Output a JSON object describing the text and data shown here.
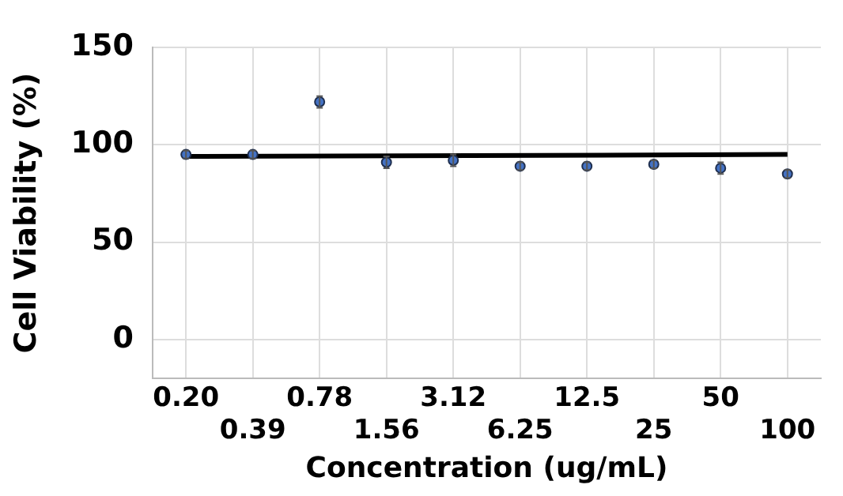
{
  "chart_data": {
    "type": "scatter",
    "xlabel": "Concentration (ug/mL)",
    "ylabel": "Cell Viability (%)",
    "categories": [
      "0.20",
      "0.39",
      "0.78",
      "1.56",
      "3.12",
      "6.25",
      "12.5",
      "25",
      "50",
      "100"
    ],
    "series": [
      {
        "color": "#4472c4",
        "values": [
          95,
          95,
          122,
          91,
          92,
          89,
          89,
          90,
          88,
          85
        ],
        "errors": [
          2,
          2,
          3,
          3,
          3,
          2,
          2,
          2,
          3,
          2
        ],
        "marker": "circle"
      },
      {
        "type": "line",
        "color": "#000000",
        "x": [
          "0.20",
          "100"
        ],
        "values": [
          94,
          95
        ]
      }
    ],
    "ylim": [
      -20,
      150
    ],
    "yticks": [
      0,
      50,
      100,
      150
    ],
    "grid": true,
    "legend": false
  }
}
